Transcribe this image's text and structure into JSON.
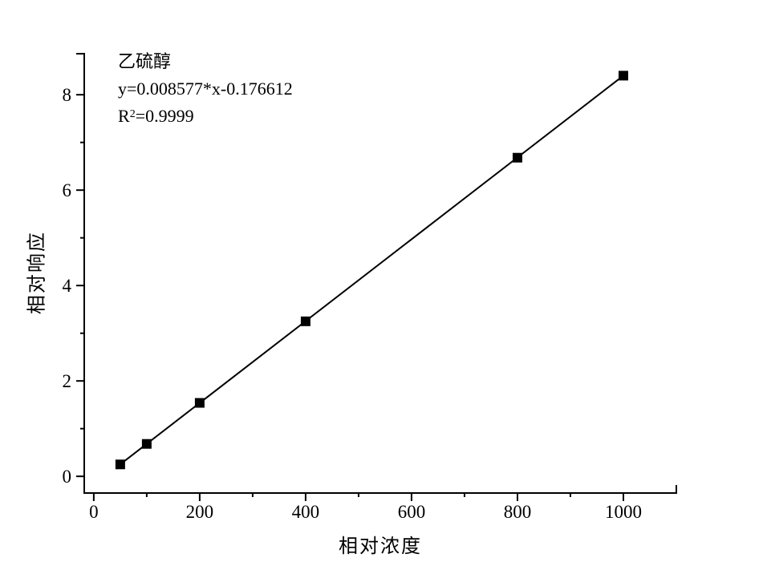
{
  "chart_data": {
    "type": "scatter",
    "title": "乙硫醇",
    "equation": "y=0.008577*x-0.176612",
    "r_squared": {
      "base": "R",
      "exponent": "2",
      "value": "=0.9999"
    },
    "xlabel": "相对浓度",
    "ylabel": "相对响应",
    "series": [
      {
        "name": "乙硫醇",
        "x": [
          50,
          100,
          200,
          400,
          800,
          1000
        ],
        "y": [
          0.25,
          0.68,
          1.54,
          3.25,
          6.68,
          8.4
        ]
      }
    ],
    "fit_line": {
      "slope": 0.008577,
      "intercept": -0.176612,
      "x_start": 50,
      "x_end": 1000
    },
    "x_major_ticks": [
      0,
      200,
      400,
      600,
      800,
      1000
    ],
    "x_minor_ticks": [
      100,
      300,
      500,
      700,
      900
    ],
    "y_major_ticks": [
      0,
      2,
      4,
      6,
      8
    ],
    "y_minor_ticks": [
      1,
      3,
      5,
      7
    ],
    "x_tick_labels": [
      "0",
      "200",
      "400",
      "600",
      "800",
      "1000"
    ],
    "y_tick_labels": [
      "0",
      "2",
      "4",
      "6",
      "8"
    ],
    "xlim": [
      -18,
      1100
    ],
    "ylim": [
      -0.35,
      8.86
    ],
    "grid": false,
    "legend": "none",
    "marker": {
      "shape": "filled-square",
      "color": "#000000"
    },
    "colors": {
      "axis": "#000000",
      "line": "#000000",
      "marker": "#000000",
      "background": "#ffffff",
      "text": "#000000"
    }
  }
}
